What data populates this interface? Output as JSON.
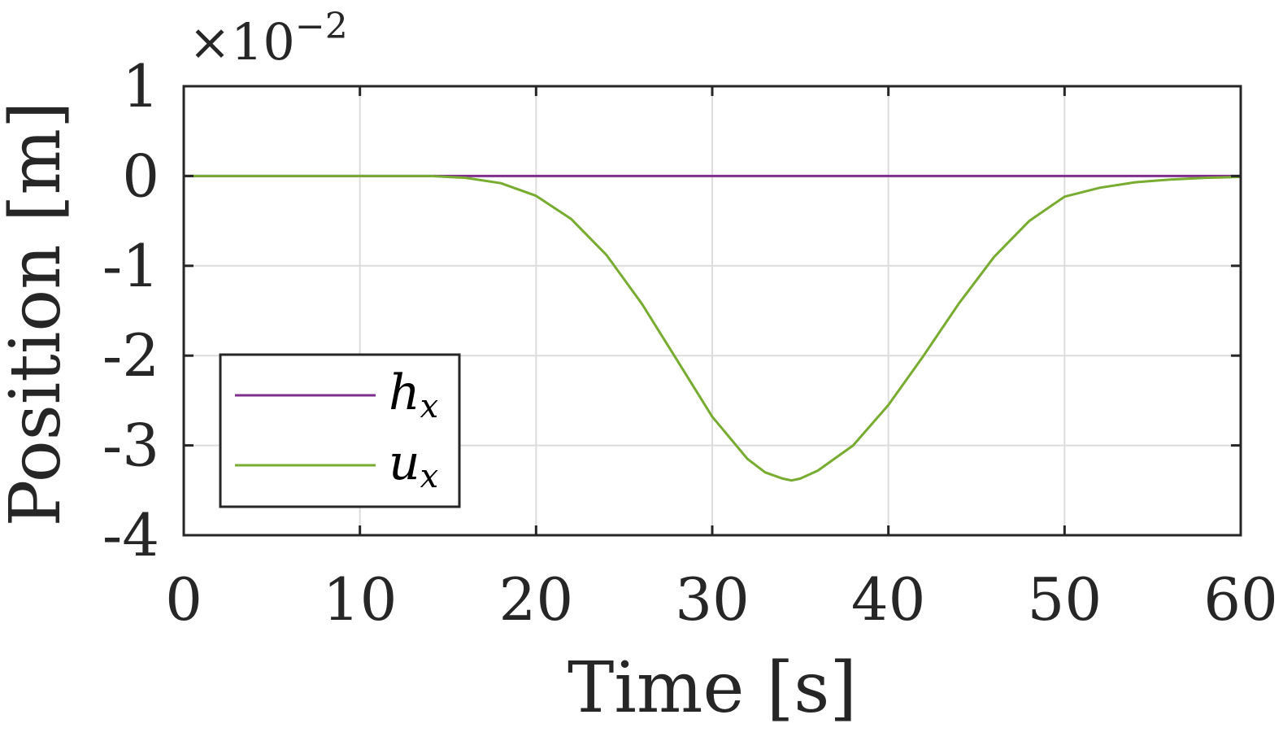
{
  "chart_data": {
    "type": "line",
    "title": "",
    "xlabel": "Time [s]",
    "ylabel": "Position [m]",
    "xlim": [
      0,
      60
    ],
    "ylim": [
      -4,
      1
    ],
    "y_scale_multiplier": "×10",
    "y_scale_exponent": "−2",
    "xticks": [
      0,
      10,
      20,
      30,
      40,
      50,
      60
    ],
    "xtick_labels": [
      "0",
      "10",
      "20",
      "30",
      "40",
      "50",
      "60"
    ],
    "yticks": [
      1,
      0,
      -1,
      -2,
      -3,
      -4
    ],
    "ytick_labels": [
      "1",
      "0",
      "-1",
      "-2",
      "-3",
      "-4"
    ],
    "grid": true,
    "legend": {
      "location": "lower-left",
      "entries": [
        {
          "symbol": "h",
          "subscript": "x"
        },
        {
          "symbol": "u",
          "subscript": "x"
        }
      ]
    },
    "series": [
      {
        "name": "h_x",
        "color": "#7E2F8E",
        "x": [
          0,
          10,
          20,
          30,
          40,
          50,
          60
        ],
        "y": [
          0,
          0,
          0,
          0,
          0,
          0,
          0
        ]
      },
      {
        "name": "u_x",
        "color": "#77AC30",
        "x": [
          0,
          5,
          10,
          14,
          16,
          18,
          20,
          22,
          24,
          26,
          28,
          30,
          32,
          33,
          34,
          34.5,
          35,
          36,
          38,
          40,
          42,
          44,
          46,
          48,
          50,
          52,
          54,
          56,
          58,
          60
        ],
        "y": [
          0,
          0,
          0,
          0,
          -0.02,
          -0.08,
          -0.22,
          -0.48,
          -0.88,
          -1.42,
          -2.05,
          -2.68,
          -3.15,
          -3.3,
          -3.37,
          -3.39,
          -3.37,
          -3.28,
          -3.0,
          -2.55,
          -2.0,
          -1.42,
          -0.9,
          -0.5,
          -0.23,
          -0.13,
          -0.07,
          -0.04,
          -0.02,
          -0.01
        ]
      }
    ]
  }
}
